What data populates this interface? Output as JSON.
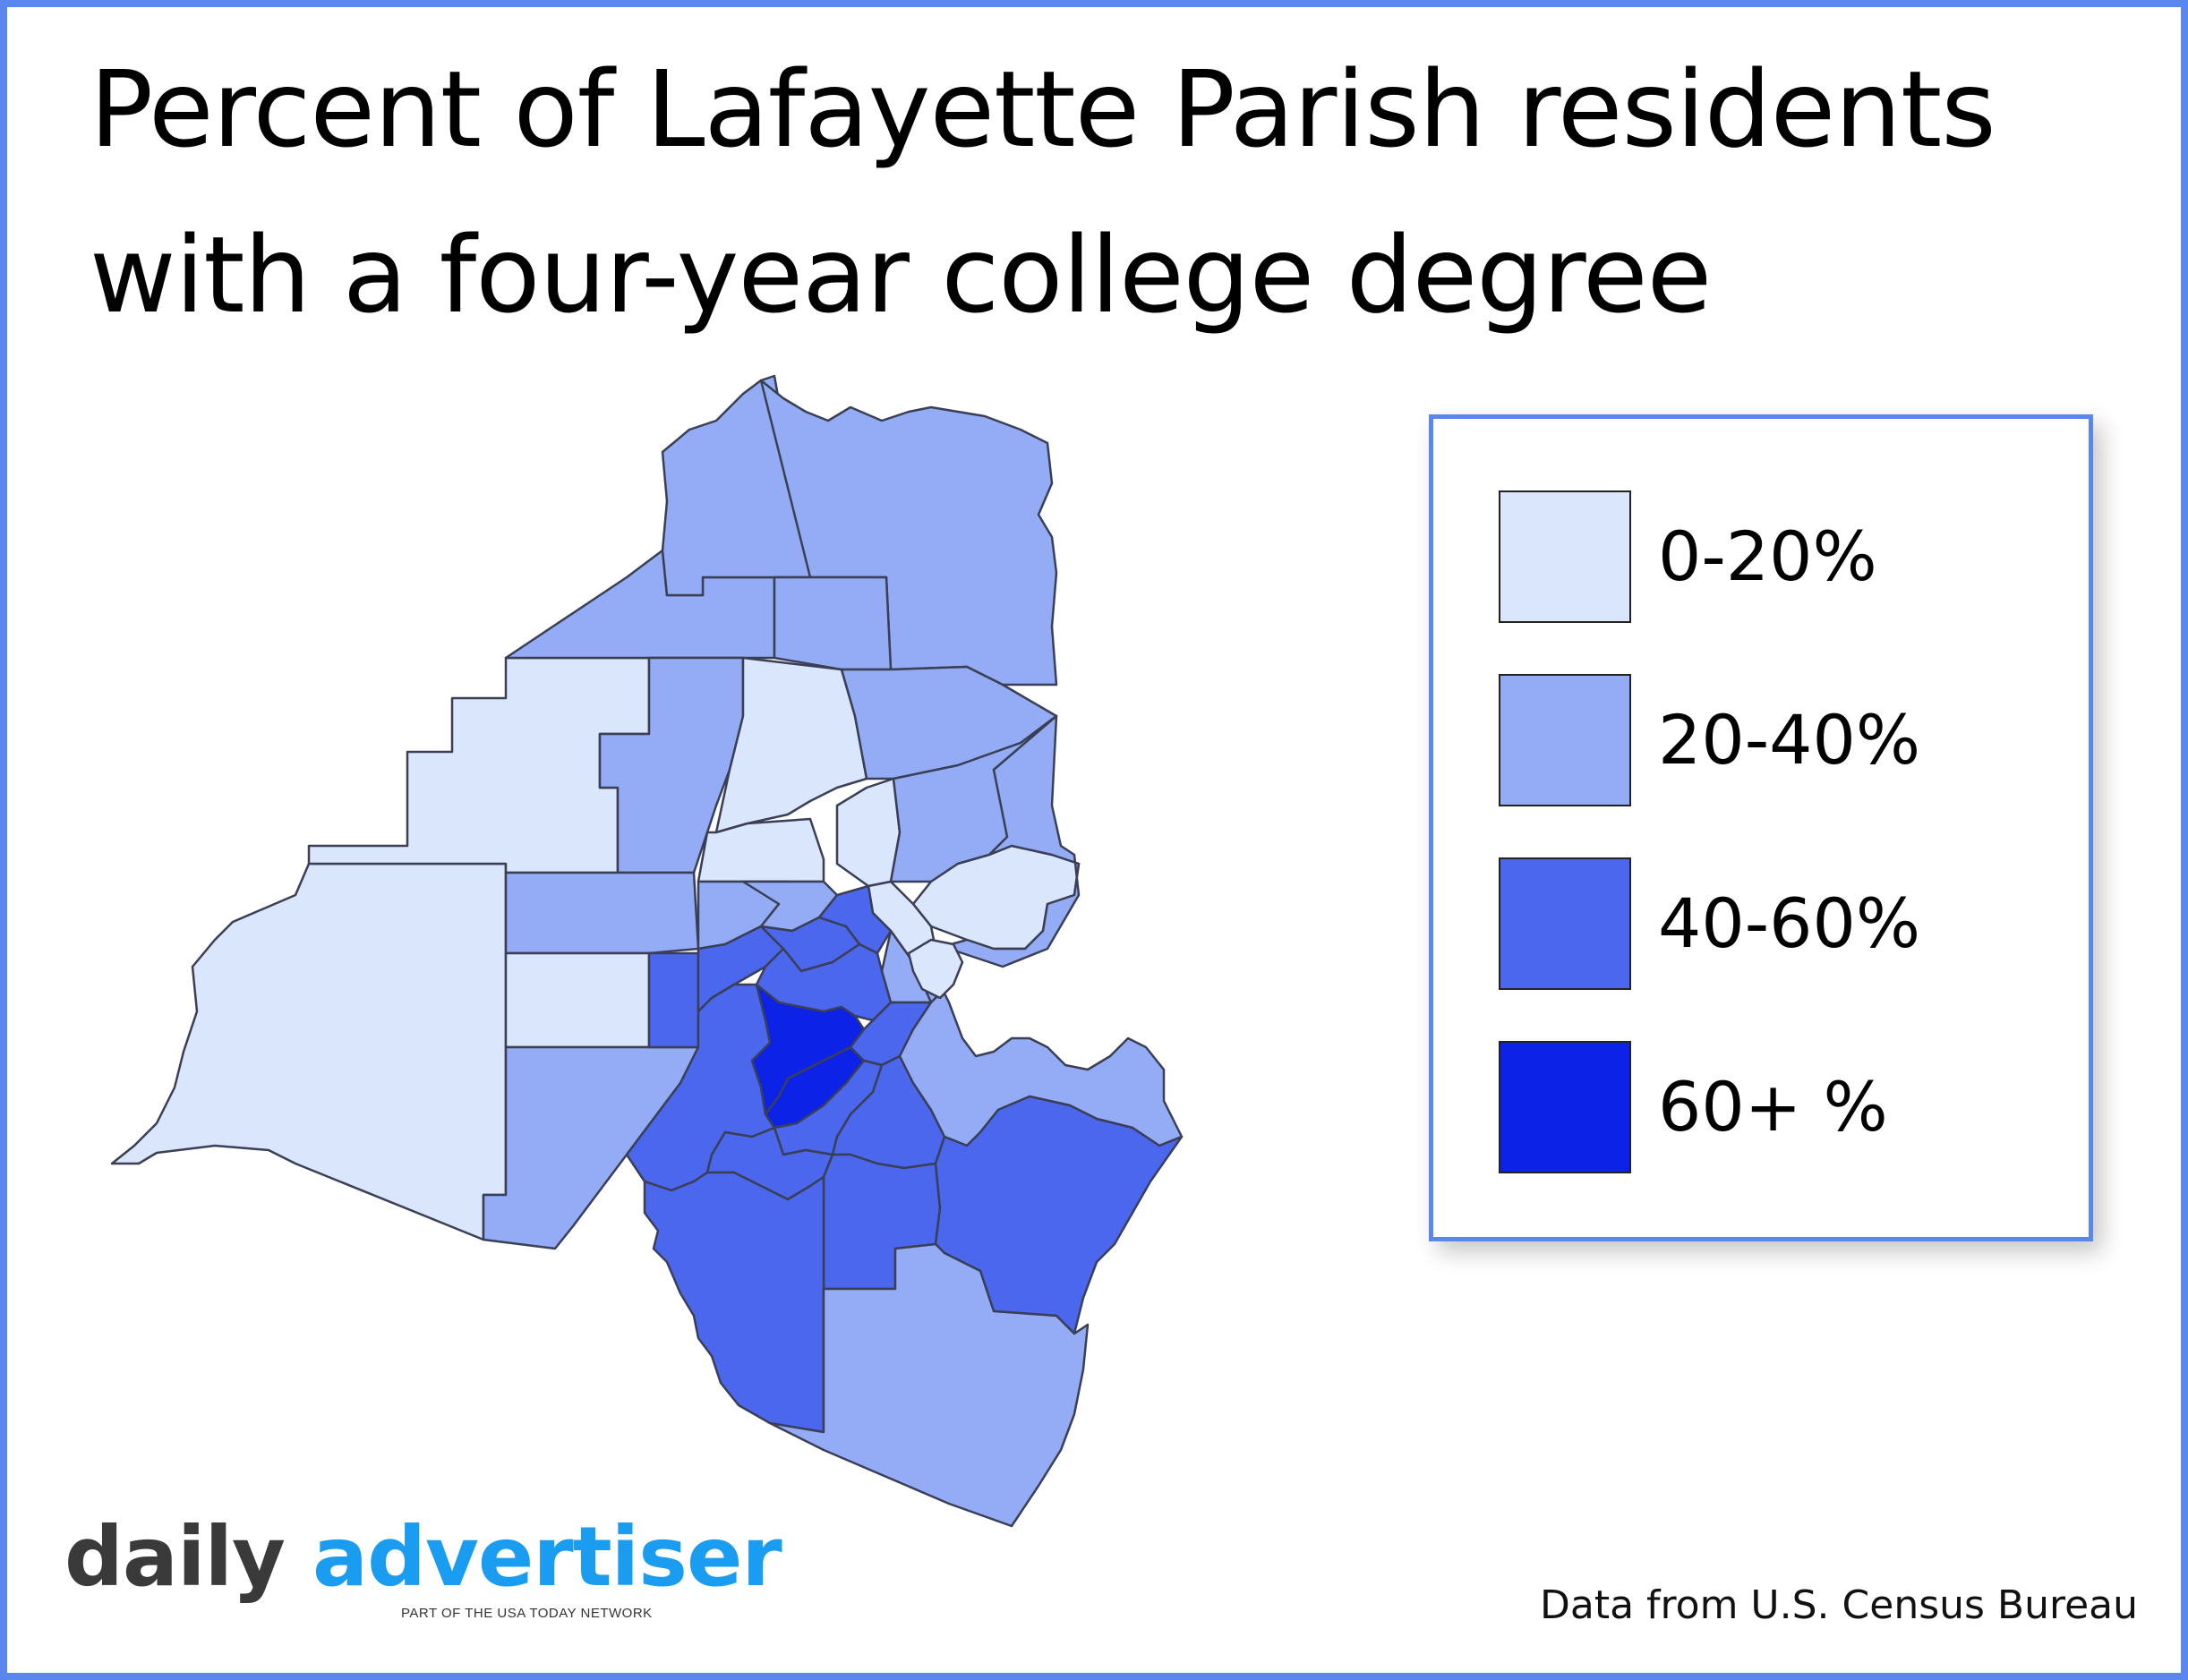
{
  "title": {
    "line1": "Percent of Lafayette Parish residents",
    "line2": "with a four-year college degree"
  },
  "legend": {
    "items": [
      {
        "label": "0-20%",
        "color": "#d9e6fb"
      },
      {
        "label": "20-40%",
        "color": "#93acf5"
      },
      {
        "label": "40-60%",
        "color": "#4a67ee"
      },
      {
        "label": "60+ %",
        "color": "#0c22e6"
      }
    ]
  },
  "map": {
    "region": "Lafayette Parish",
    "fill_categories": {
      "low": "0-20%",
      "mid": "20-40%",
      "high": "40-60%",
      "top": "60+ %"
    }
  },
  "branding": {
    "logo_word1": "daily",
    "logo_word2": "advertiser",
    "logo_tagline": "PART OF THE USA TODAY NETWORK"
  },
  "source": "Data from U.S. Census Bureau",
  "colors": {
    "frame": "#5b86ee",
    "c0": "#d9e6fb",
    "c1": "#93acf5",
    "c2": "#4a67ee",
    "c3": "#0c22e6"
  }
}
